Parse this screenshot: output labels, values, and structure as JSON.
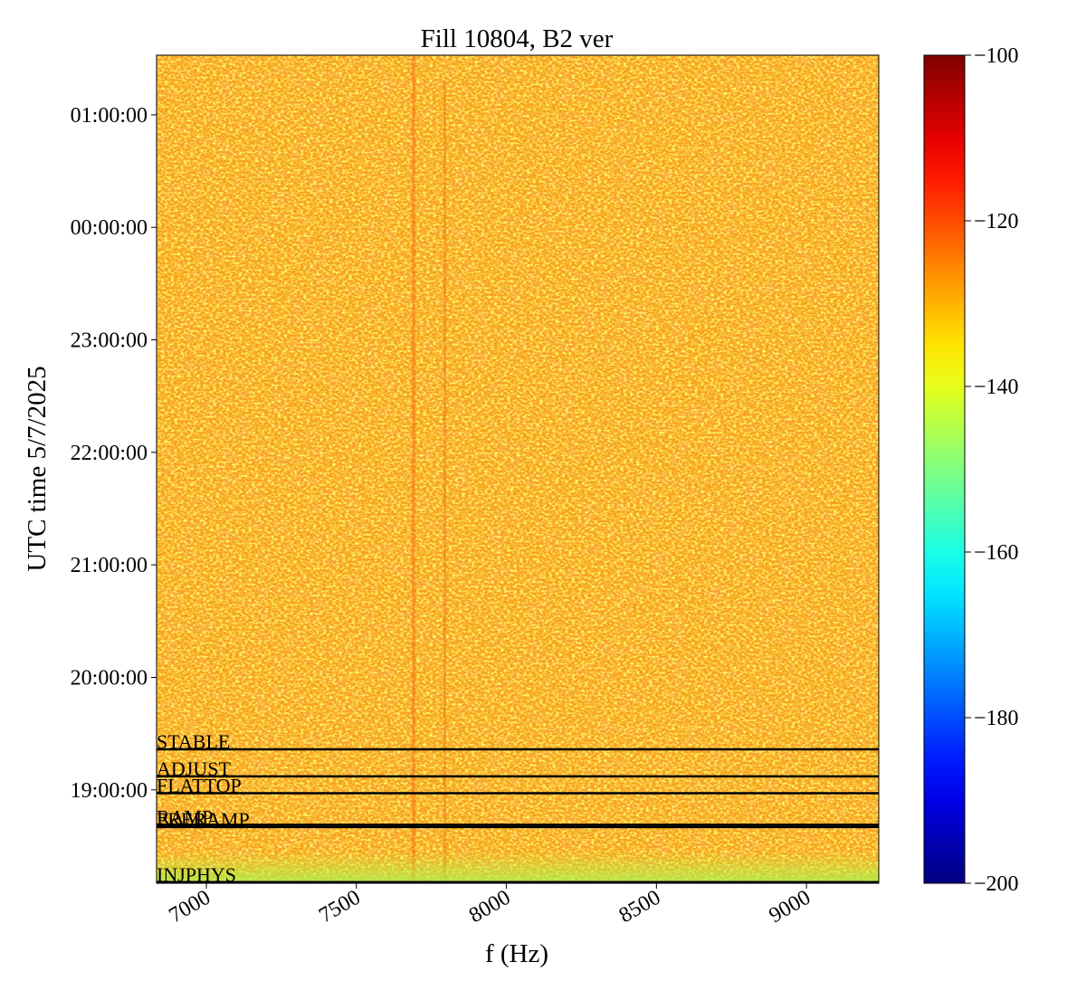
{
  "chart_data": {
    "type": "spectrogram",
    "title": "Fill 10804, B2 ver",
    "x_label": "f (Hz)",
    "y_label": "UTC time 5/7/2025",
    "xlim": [
      6834,
      9241
    ],
    "xticks": [
      7000,
      7500,
      8000,
      8500,
      9000
    ],
    "ylim": [
      18.17,
      25.53
    ],
    "yticks": [
      {
        "value": 19,
        "label": "19:00:00"
      },
      {
        "value": 20,
        "label": "20:00:00"
      },
      {
        "value": 21,
        "label": "21:00:00"
      },
      {
        "value": 22,
        "label": "22:00:00"
      },
      {
        "value": 23,
        "label": "23:00:00"
      },
      {
        "value": 24,
        "label": "00:00:00"
      },
      {
        "value": 25,
        "label": "01:00:00"
      }
    ],
    "colormap": "jet",
    "clim": [
      -200,
      -100
    ],
    "cticks": [
      {
        "value": -200,
        "label": "−200"
      },
      {
        "value": -180,
        "label": "−180"
      },
      {
        "value": -160,
        "label": "−160"
      },
      {
        "value": -140,
        "label": "−140"
      },
      {
        "value": -120,
        "label": "−120"
      },
      {
        "value": -100,
        "label": "−100"
      }
    ],
    "events": [
      {
        "label": "STABLE",
        "time": 19.36
      },
      {
        "label": "ADJUST",
        "time": 19.12
      },
      {
        "label": "FLATTOP",
        "time": 18.97
      },
      {
        "label": "RAMP",
        "time": 18.69
      },
      {
        "label": "PRERAMP",
        "time": 18.67
      },
      {
        "label": "INJPHYS",
        "time": 18.18
      }
    ],
    "event_color": "#000000"
  }
}
